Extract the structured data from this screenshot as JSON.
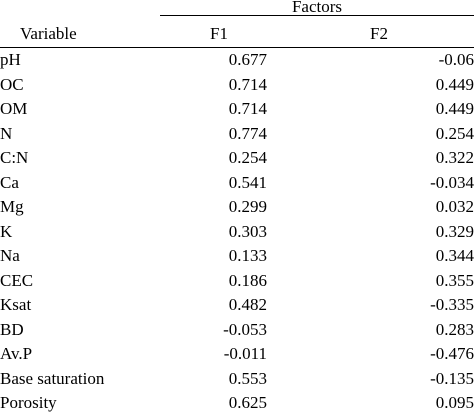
{
  "table": {
    "group_header": "Factors",
    "columns": {
      "variable": "Variable",
      "f1": "F1",
      "f2": "F2"
    },
    "rows": [
      {
        "variable": "pH",
        "f1": "0.677",
        "f2": "-0.06"
      },
      {
        "variable": "OC",
        "f1": "0.714",
        "f2": "0.449"
      },
      {
        "variable": "OM",
        "f1": "0.714",
        "f2": "0.449"
      },
      {
        "variable": "N",
        "f1": "0.774",
        "f2": "0.254"
      },
      {
        "variable": "C:N",
        "f1": "0.254",
        "f2": "0.322"
      },
      {
        "variable": "Ca",
        "f1": "0.541",
        "f2": "-0.034"
      },
      {
        "variable": "Mg",
        "f1": "0.299",
        "f2": "0.032"
      },
      {
        "variable": "K",
        "f1": "0.303",
        "f2": "0.329"
      },
      {
        "variable": "Na",
        "f1": "0.133",
        "f2": "0.344"
      },
      {
        "variable": "CEC",
        "f1": "0.186",
        "f2": "0.355"
      },
      {
        "variable": "Ksat",
        "f1": "0.482",
        "f2": "-0.335"
      },
      {
        "variable": "BD",
        "f1": "-0.053",
        "f2": "0.283"
      },
      {
        "variable": "Av.P",
        "f1": "-0.011",
        "f2": "-0.476"
      },
      {
        "variable": "Base saturation",
        "f1": "0.553",
        "f2": "-0.135"
      },
      {
        "variable": "Porosity",
        "f1": "0.625",
        "f2": "0.095"
      }
    ]
  }
}
